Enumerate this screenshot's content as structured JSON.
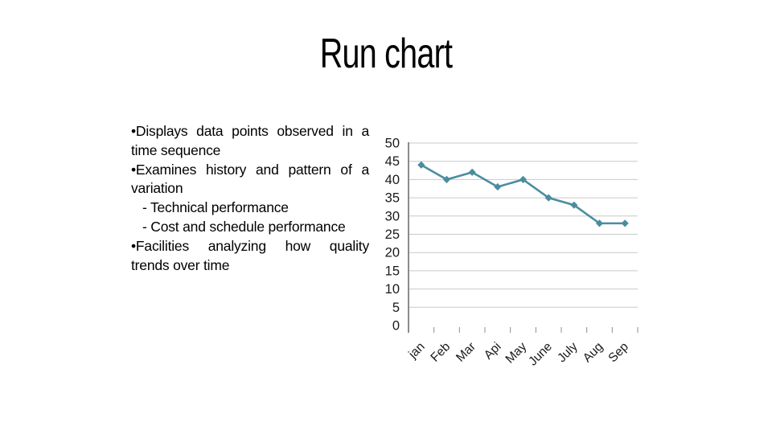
{
  "slide": {
    "title": "Run chart",
    "bullet_lines": [
      {
        "text": "•Displays data points observed in a",
        "style": "justify"
      },
      {
        "text": "time sequence",
        "style": "plain"
      },
      {
        "text": "•Examines history and pattern of a",
        "style": "justify"
      },
      {
        "text": "variation",
        "style": "plain"
      },
      {
        "text": "- Technical performance",
        "style": "indent"
      },
      {
        "text": "- Cost and schedule performance",
        "style": "indent"
      },
      {
        "text": "•Facilities analyzing how quality",
        "style": "justify"
      },
      {
        "text": "trends over time",
        "style": "plain"
      }
    ]
  },
  "chart_data": {
    "type": "line",
    "title": "",
    "categories": [
      "jan",
      "Feb",
      "Mar",
      "Api",
      "May",
      "June",
      "July",
      "Aug",
      "Sep"
    ],
    "series": [
      {
        "name": "",
        "values": [
          44,
          40,
          42,
          38,
          40,
          35,
          33,
          28,
          28
        ]
      }
    ],
    "xlabel": "",
    "ylabel": "",
    "ylim": [
      0,
      50
    ],
    "ytick_step": 5,
    "grid": "horizontal-gridlines-only",
    "legend_position": "none",
    "marker": "diamond",
    "colors": {
      "line": "#4a8da0",
      "marker": "#4a8da0",
      "gridline": "#c9c9c9",
      "axis": "#7f7f7f",
      "tick": "#8c8c8c",
      "label_text": "#1a1a1a"
    }
  }
}
